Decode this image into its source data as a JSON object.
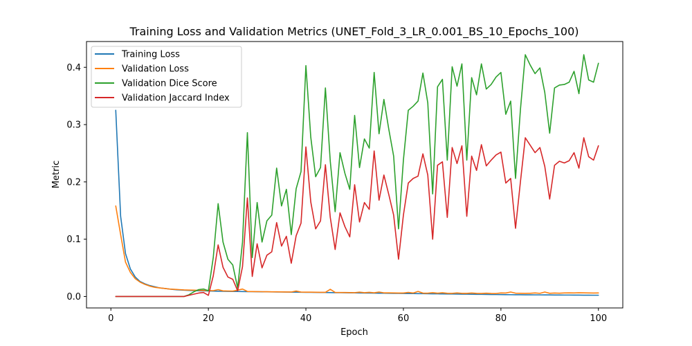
{
  "chart_data": {
    "type": "line",
    "title": "Training Loss and Validation Metrics (UNET_Fold_3_LR_0.001_BS_10_Epochs_100)",
    "xlabel": "Epoch",
    "ylabel": "Metric",
    "xlim": [
      -5,
      105
    ],
    "ylim": [
      -0.02,
      0.445
    ],
    "xticks": [
      0,
      20,
      40,
      60,
      80,
      100
    ],
    "yticks": [
      0.0,
      0.1,
      0.2,
      0.3,
      0.4
    ],
    "ytick_labels": [
      "0.0",
      "0.1",
      "0.2",
      "0.3",
      "0.4"
    ],
    "grid": false,
    "legend_position": "top-left",
    "x": [
      1,
      2,
      3,
      4,
      5,
      6,
      7,
      8,
      9,
      10,
      11,
      12,
      13,
      14,
      15,
      16,
      17,
      18,
      19,
      20,
      21,
      22,
      23,
      24,
      25,
      26,
      27,
      28,
      29,
      30,
      31,
      32,
      33,
      34,
      35,
      36,
      37,
      38,
      39,
      40,
      41,
      42,
      43,
      44,
      45,
      46,
      47,
      48,
      49,
      50,
      51,
      52,
      53,
      54,
      55,
      56,
      57,
      58,
      59,
      60,
      61,
      62,
      63,
      64,
      65,
      66,
      67,
      68,
      69,
      70,
      71,
      72,
      73,
      74,
      75,
      76,
      77,
      78,
      79,
      80,
      81,
      82,
      83,
      84,
      85,
      86,
      87,
      88,
      89,
      90,
      91,
      92,
      93,
      94,
      95,
      96,
      97,
      98,
      99,
      100
    ],
    "series": [
      {
        "name": "Training Loss",
        "color": "#1f77b4",
        "values": [
          0.325,
          0.14,
          0.075,
          0.048,
          0.034,
          0.026,
          0.022,
          0.019,
          0.017,
          0.015,
          0.014,
          0.013,
          0.012,
          0.0115,
          0.011,
          0.0105,
          0.0102,
          0.01,
          0.0098,
          0.0096,
          0.0094,
          0.0092,
          0.009,
          0.0089,
          0.0088,
          0.0087,
          0.0086,
          0.0085,
          0.0084,
          0.0083,
          0.0082,
          0.0081,
          0.008,
          0.0079,
          0.0078,
          0.0077,
          0.0076,
          0.0075,
          0.0074,
          0.0073,
          0.0072,
          0.0071,
          0.007,
          0.0069,
          0.0068,
          0.0067,
          0.0066,
          0.0065,
          0.0064,
          0.0063,
          0.0062,
          0.0061,
          0.006,
          0.0059,
          0.0058,
          0.0057,
          0.0056,
          0.0055,
          0.0054,
          0.0053,
          0.0052,
          0.0051,
          0.005,
          0.0049,
          0.0048,
          0.0047,
          0.0046,
          0.0045,
          0.0044,
          0.0043,
          0.0042,
          0.0041,
          0.004,
          0.0039,
          0.0038,
          0.0037,
          0.0036,
          0.0035,
          0.0034,
          0.0033,
          0.0032,
          0.0031,
          0.003,
          0.003,
          0.0029,
          0.0029,
          0.0028,
          0.0028,
          0.0027,
          0.0027,
          0.0026,
          0.0026,
          0.0025,
          0.0025,
          0.0024,
          0.0024,
          0.0023,
          0.0023,
          0.0022,
          0.0022
        ]
      },
      {
        "name": "Validation Loss",
        "color": "#ff7f0e",
        "values": [
          0.158,
          0.108,
          0.06,
          0.042,
          0.031,
          0.025,
          0.021,
          0.018,
          0.016,
          0.015,
          0.014,
          0.013,
          0.0125,
          0.012,
          0.0115,
          0.0112,
          0.011,
          0.0108,
          0.0106,
          0.0104,
          0.0102,
          0.012,
          0.0098,
          0.0096,
          0.0094,
          0.011,
          0.013,
          0.0088,
          0.0086,
          0.0085,
          0.0084,
          0.0083,
          0.0082,
          0.0081,
          0.008,
          0.0079,
          0.0078,
          0.0095,
          0.0077,
          0.0076,
          0.0075,
          0.0074,
          0.0073,
          0.0072,
          0.0125,
          0.0071,
          0.007,
          0.0069,
          0.0068,
          0.0067,
          0.0075,
          0.0066,
          0.0072,
          0.0065,
          0.0078,
          0.0064,
          0.0063,
          0.0062,
          0.0061,
          0.006,
          0.0072,
          0.006,
          0.0088,
          0.0059,
          0.0058,
          0.0066,
          0.0057,
          0.0065,
          0.0056,
          0.0055,
          0.0062,
          0.0055,
          0.0054,
          0.006,
          0.0054,
          0.0053,
          0.0058,
          0.0053,
          0.0052,
          0.0062,
          0.006,
          0.0078,
          0.0058,
          0.0056,
          0.0055,
          0.0056,
          0.0062,
          0.0055,
          0.0078,
          0.0056,
          0.006,
          0.0058,
          0.0062,
          0.0064,
          0.0062,
          0.0065,
          0.0063,
          0.0062,
          0.0061,
          0.0062
        ]
      },
      {
        "name": "Validation Dice Score",
        "color": "#2ca02c",
        "values": [
          0.0,
          0.0,
          0.0,
          0.0,
          0.0,
          0.0,
          0.0,
          0.0,
          0.0,
          0.0,
          0.0,
          0.0,
          0.0,
          0.0,
          0.0,
          0.003,
          0.008,
          0.012,
          0.013,
          0.01,
          0.068,
          0.162,
          0.095,
          0.065,
          0.055,
          0.015,
          0.095,
          0.286,
          0.068,
          0.164,
          0.095,
          0.132,
          0.142,
          0.224,
          0.158,
          0.187,
          0.108,
          0.188,
          0.218,
          0.403,
          0.278,
          0.209,
          0.225,
          0.364,
          0.236,
          0.148,
          0.251,
          0.215,
          0.187,
          0.316,
          0.225,
          0.275,
          0.259,
          0.391,
          0.284,
          0.344,
          0.292,
          0.245,
          0.118,
          0.238,
          0.325,
          0.332,
          0.341,
          0.39,
          0.338,
          0.179,
          0.366,
          0.379,
          0.238,
          0.401,
          0.367,
          0.406,
          0.238,
          0.382,
          0.352,
          0.406,
          0.362,
          0.37,
          0.383,
          0.391,
          0.318,
          0.341,
          0.206,
          0.326,
          0.422,
          0.404,
          0.389,
          0.399,
          0.356,
          0.285,
          0.364,
          0.369,
          0.37,
          0.374,
          0.393,
          0.354,
          0.422,
          0.378,
          0.374,
          0.407
        ]
      },
      {
        "name": "Validation Jaccard Index",
        "color": "#d62728",
        "values": [
          0.0,
          0.0,
          0.0,
          0.0,
          0.0,
          0.0,
          0.0,
          0.0,
          0.0,
          0.0,
          0.0,
          0.0,
          0.0,
          0.0,
          0.0,
          0.002,
          0.004,
          0.006,
          0.007,
          0.002,
          0.036,
          0.09,
          0.051,
          0.034,
          0.03,
          0.01,
          0.052,
          0.172,
          0.035,
          0.092,
          0.05,
          0.072,
          0.078,
          0.129,
          0.088,
          0.105,
          0.058,
          0.106,
          0.128,
          0.261,
          0.165,
          0.118,
          0.132,
          0.23,
          0.138,
          0.082,
          0.146,
          0.122,
          0.104,
          0.195,
          0.13,
          0.164,
          0.152,
          0.254,
          0.168,
          0.212,
          0.178,
          0.142,
          0.065,
          0.142,
          0.198,
          0.206,
          0.21,
          0.249,
          0.212,
          0.1,
          0.229,
          0.235,
          0.138,
          0.26,
          0.232,
          0.263,
          0.14,
          0.245,
          0.22,
          0.265,
          0.228,
          0.238,
          0.247,
          0.252,
          0.198,
          0.206,
          0.119,
          0.2,
          0.277,
          0.264,
          0.251,
          0.26,
          0.227,
          0.17,
          0.229,
          0.236,
          0.233,
          0.237,
          0.251,
          0.224,
          0.277,
          0.244,
          0.238,
          0.263
        ]
      }
    ]
  }
}
